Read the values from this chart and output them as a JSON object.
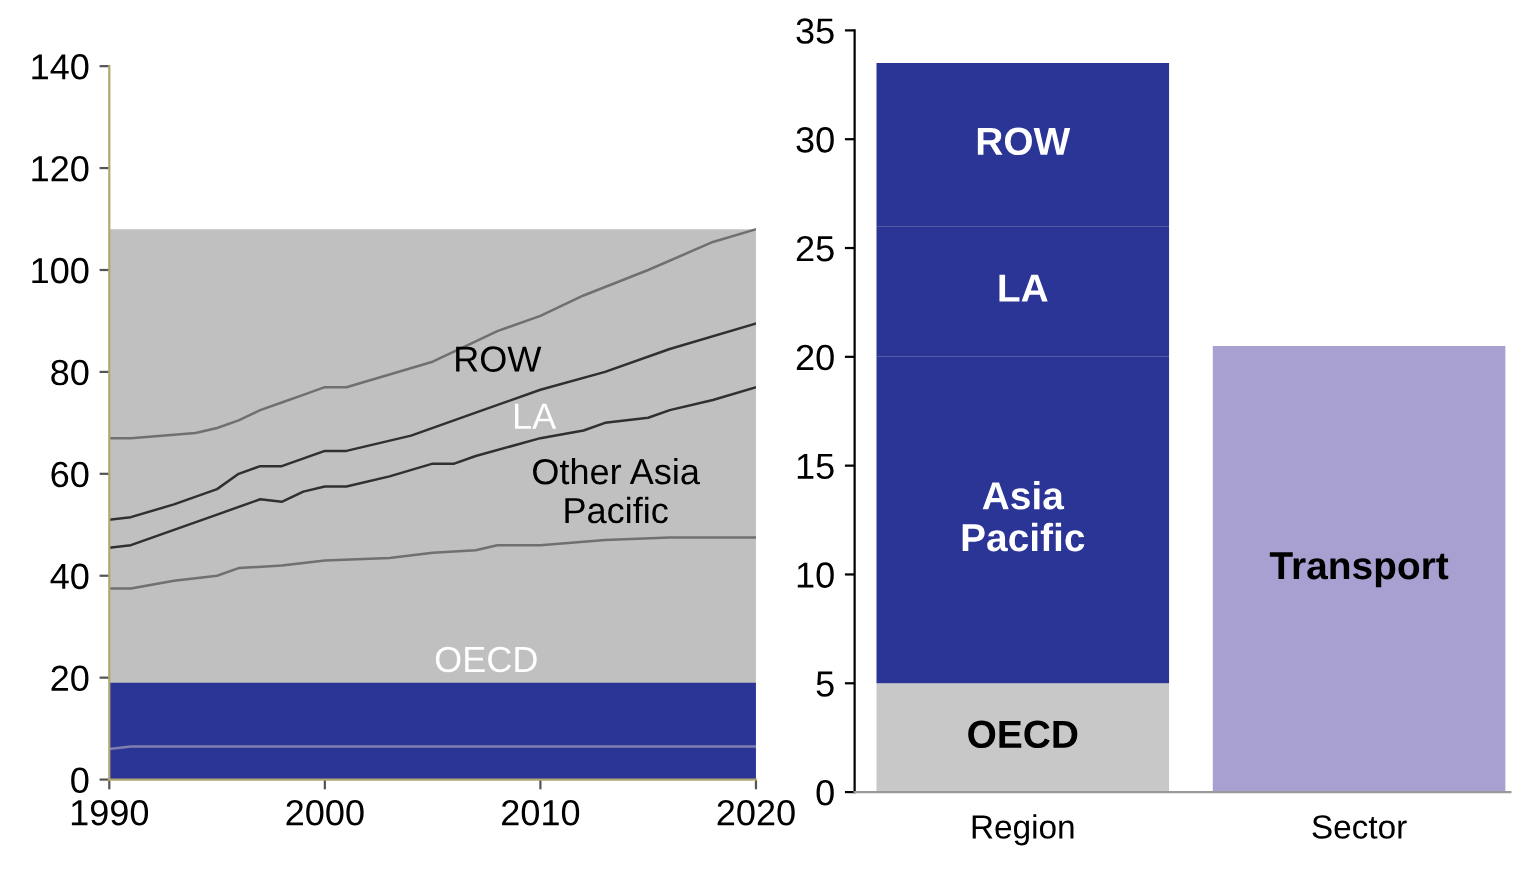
{
  "chart_data": [
    {
      "type": "line",
      "xlim": [
        1990,
        2020
      ],
      "xticks": [
        1990,
        2000,
        2010,
        2020
      ],
      "ylim": [
        0,
        140
      ],
      "yticks": [
        0,
        20,
        40,
        60,
        80,
        100,
        120,
        140
      ],
      "grid": false,
      "legend": false,
      "series": [
        {
          "type": "area",
          "color": "#c0c0c0",
          "x": [
            1990,
            2020
          ],
          "values": [
            108,
            108
          ]
        },
        {
          "type": "area",
          "color": "#2b3595",
          "x": [
            1990,
            2020
          ],
          "values": [
            19,
            19
          ]
        },
        {
          "color": "#8080b0",
          "x": [
            1990,
            1991,
            2020
          ],
          "values": [
            6,
            6.5,
            6.5
          ]
        },
        {
          "color": "#707070",
          "x": [
            1990,
            1991,
            1993,
            1995,
            1996,
            1998,
            2000,
            2003,
            2005,
            2007,
            2008,
            2010,
            2013,
            2016,
            2020
          ],
          "values": [
            37.5,
            37.5,
            39,
            40,
            41.5,
            42,
            43,
            43.5,
            44.5,
            45,
            46,
            46,
            47,
            47.5,
            47.5
          ]
        },
        {
          "color": "#303030",
          "x": [
            1990,
            1991,
            1993,
            1995,
            1997,
            1998,
            1999,
            2000,
            2001,
            2003,
            2005,
            2006,
            2007,
            2010,
            2012,
            2013,
            2015,
            2016,
            2018,
            2020
          ],
          "values": [
            45.5,
            46,
            49,
            52,
            55,
            54.5,
            56.5,
            57.5,
            57.5,
            59.5,
            62,
            62,
            63.5,
            67,
            68.5,
            70,
            71,
            72.5,
            74.5,
            77
          ]
        },
        {
          "color": "#303030",
          "x": [
            1990,
            1991,
            1993,
            1995,
            1996,
            1997,
            1998,
            2000,
            2001,
            2004,
            2007,
            2010,
            2013,
            2016,
            2020
          ],
          "values": [
            51,
            51.5,
            54,
            57,
            60,
            61.5,
            61.5,
            64.5,
            64.5,
            67.5,
            72,
            76.5,
            80,
            84.5,
            89.5
          ]
        },
        {
          "color": "#707070",
          "x": [
            1990,
            1991,
            1994,
            1995,
            1996,
            1997,
            1998,
            1999,
            2000,
            2001,
            2003,
            2005,
            2007,
            2008,
            2010,
            2012,
            2015,
            2018,
            2020
          ],
          "values": [
            67,
            67,
            68,
            69,
            70.5,
            72.5,
            74,
            75.5,
            77,
            77,
            79.5,
            82,
            86,
            88,
            91,
            95,
            100,
            105.5,
            108
          ]
        }
      ],
      "annotations": [
        "ROW",
        "LA",
        "Other Asia\nPacific",
        "OECD"
      ]
    },
    {
      "type": "bar",
      "stacked": true,
      "categories": [
        "Region",
        "Sector"
      ],
      "ylim": [
        0,
        35
      ],
      "yticks": [
        0,
        5,
        10,
        15,
        20,
        25,
        30,
        35
      ],
      "grid": false,
      "legend": false,
      "data_labels": false,
      "series": [
        {
          "name": "OECD",
          "color": "#c8c8c8",
          "values": [
            5,
            null
          ]
        },
        {
          "name": "Asia\nPacific",
          "color": "#2b3595",
          "values": [
            15,
            null
          ]
        },
        {
          "name": "LA",
          "color": "#2b3595",
          "values": [
            6,
            null
          ]
        },
        {
          "name": "ROW",
          "color": "#2b3595",
          "values": [
            7.5,
            null
          ]
        },
        {
          "name": "Transport",
          "color": "#a8a0d0",
          "values": [
            null,
            20.5
          ]
        }
      ]
    }
  ]
}
